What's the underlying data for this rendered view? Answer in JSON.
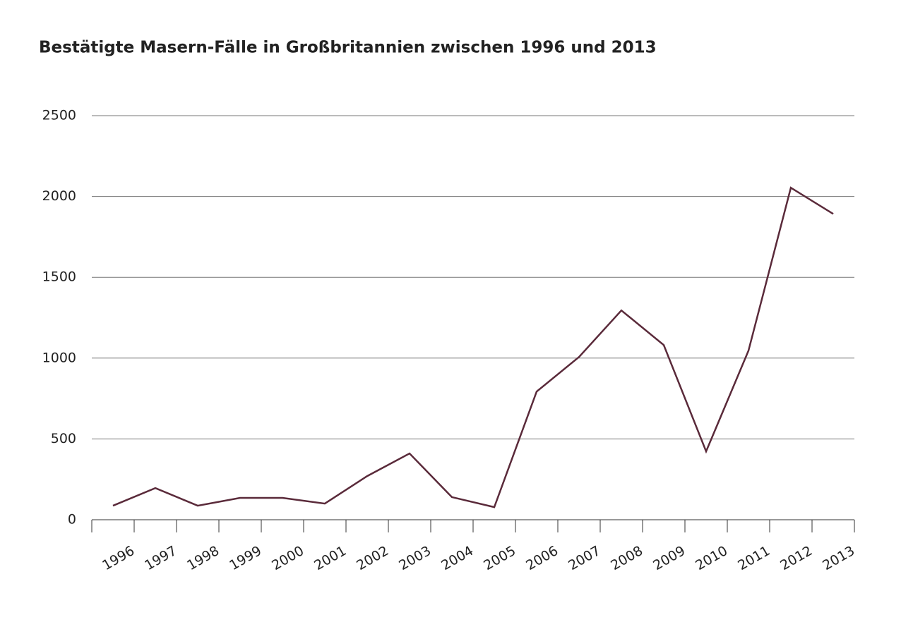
{
  "chart_data": {
    "type": "line",
    "title": "Bestätigte Masern-Fälle in Großbritannien zwischen 1996 und 2013",
    "categories": [
      "1996",
      "1997",
      "1998",
      "1999",
      "2000",
      "2001",
      "2002",
      "2003",
      "2004",
      "2005",
      "2006",
      "2007",
      "2008",
      "2009",
      "2010",
      "2011",
      "2012",
      "2013"
    ],
    "series": [
      {
        "name": "Masern-Fälle",
        "color": "#5a2a3a",
        "values": [
          87,
          196,
          87,
          135,
          135,
          100,
          270,
          410,
          140,
          78,
          793,
          1007,
          1295,
          1081,
          423,
          1046,
          2054,
          1892
        ]
      }
    ],
    "ylim": [
      0,
      2500
    ],
    "yticks": [
      0,
      500,
      1000,
      1500,
      2000,
      2500
    ],
    "grid": true
  }
}
